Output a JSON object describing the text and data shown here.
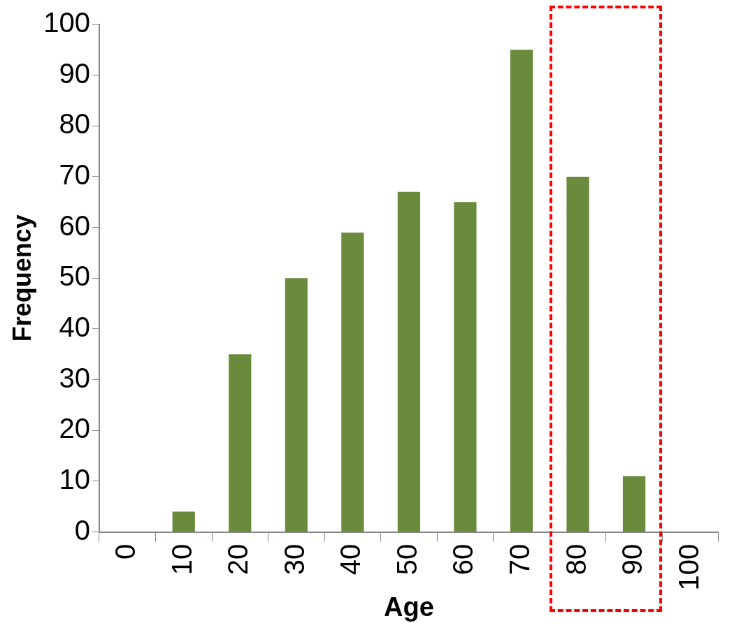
{
  "chart_data": {
    "type": "bar",
    "xlabel": "Age",
    "ylabel": "Frequency",
    "categories": [
      "0",
      "10",
      "20",
      "30",
      "40",
      "50",
      "60",
      "70",
      "80",
      "90",
      "100"
    ],
    "values": [
      0,
      4,
      35,
      50,
      59,
      67,
      65,
      95,
      70,
      11,
      0
    ],
    "color": "#6a8a3c",
    "ylim": [
      0,
      100
    ],
    "yticks": [
      0,
      10,
      20,
      30,
      40,
      50,
      60,
      70,
      80,
      90,
      100
    ],
    "grid": false,
    "legend": false
  }
}
